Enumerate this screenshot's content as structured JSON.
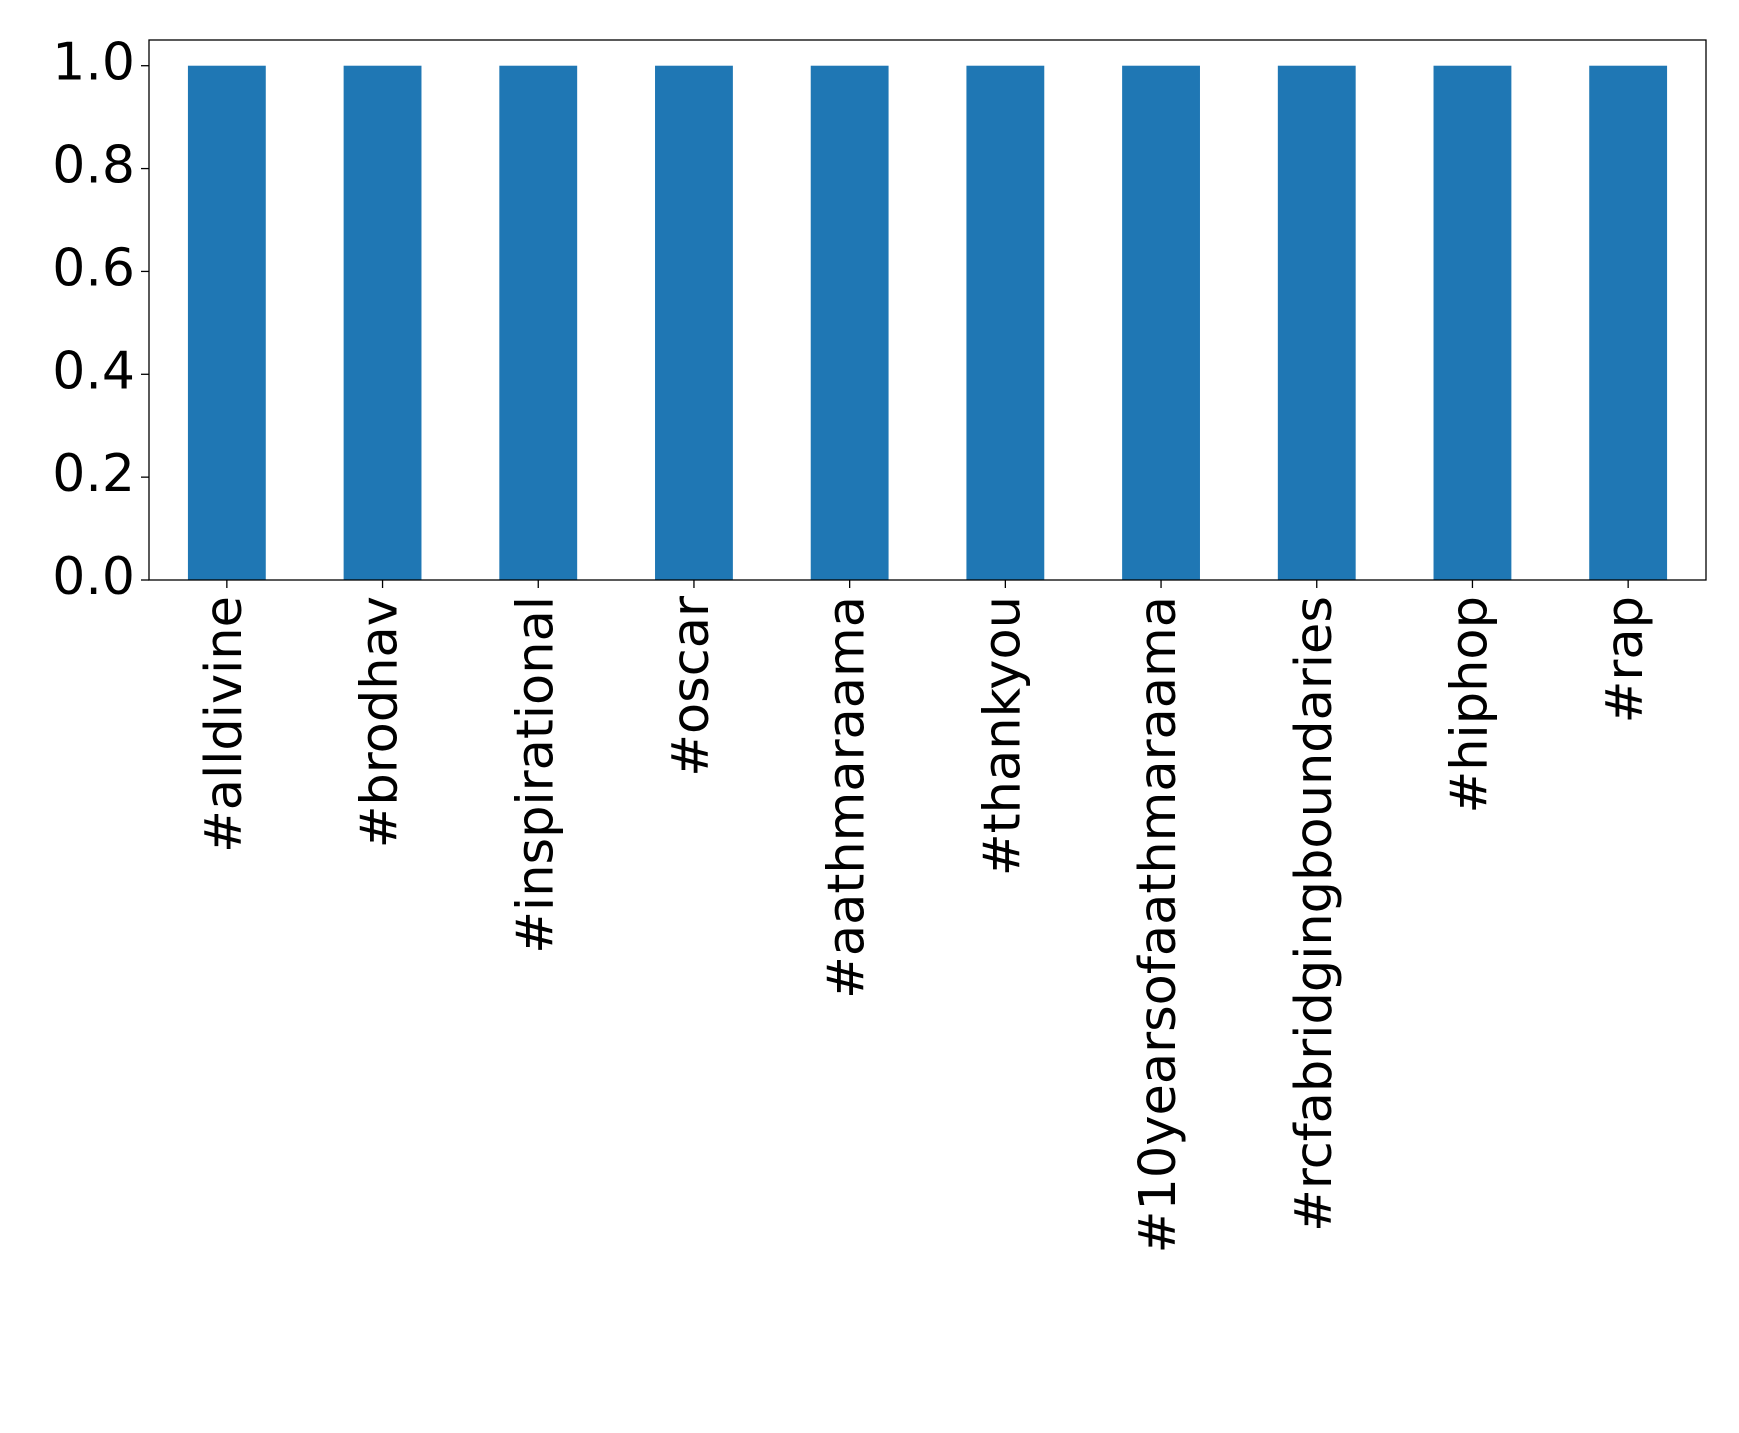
{
  "chart_data": {
    "type": "bar",
    "categories": [
      "#alldivine",
      "#brodhav",
      "#inspirational",
      "#oscar",
      "#aathmaraama",
      "#thankyou",
      "#10yearsofaathmaraama",
      "#rcfabridgingboundaries",
      "#hiphop",
      "#rap"
    ],
    "values": [
      1,
      1,
      1,
      1,
      1,
      1,
      1,
      1,
      1,
      1
    ],
    "color": "#1f77b4",
    "ylim": [
      0,
      1.05
    ],
    "yticks": [
      {
        "value": 0,
        "label": "0.0"
      },
      {
        "value": 0.2,
        "label": "0.2"
      },
      {
        "value": 0.4,
        "label": "0.4"
      },
      {
        "value": 0.6,
        "label": "0.6"
      },
      {
        "value": 0.8,
        "label": "0.8"
      },
      {
        "value": 1,
        "label": "1.0"
      }
    ],
    "grid": false
  }
}
